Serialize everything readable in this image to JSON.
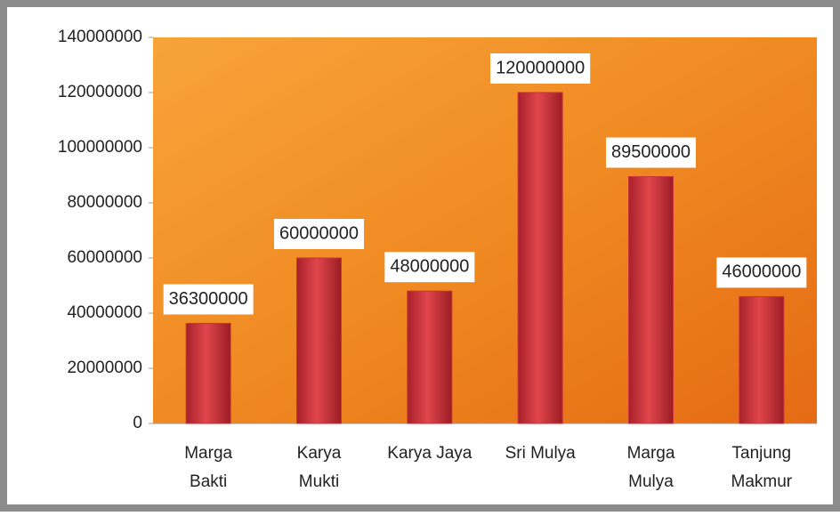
{
  "chart_data": {
    "type": "bar",
    "categories": [
      "Marga Bakti",
      "Karya Mukti",
      "Karya Jaya",
      "Sri Mulya",
      "Marga Mulya",
      "Tanjung Makmur"
    ],
    "values": [
      36300000,
      60000000,
      48000000,
      120000000,
      89500000,
      46000000
    ],
    "color": "#c8323a",
    "ylim": [
      0,
      140000000
    ],
    "yticks": [
      0,
      20000000,
      40000000,
      60000000,
      80000000,
      100000000,
      120000000,
      140000000
    ],
    "data_labels": true
  }
}
